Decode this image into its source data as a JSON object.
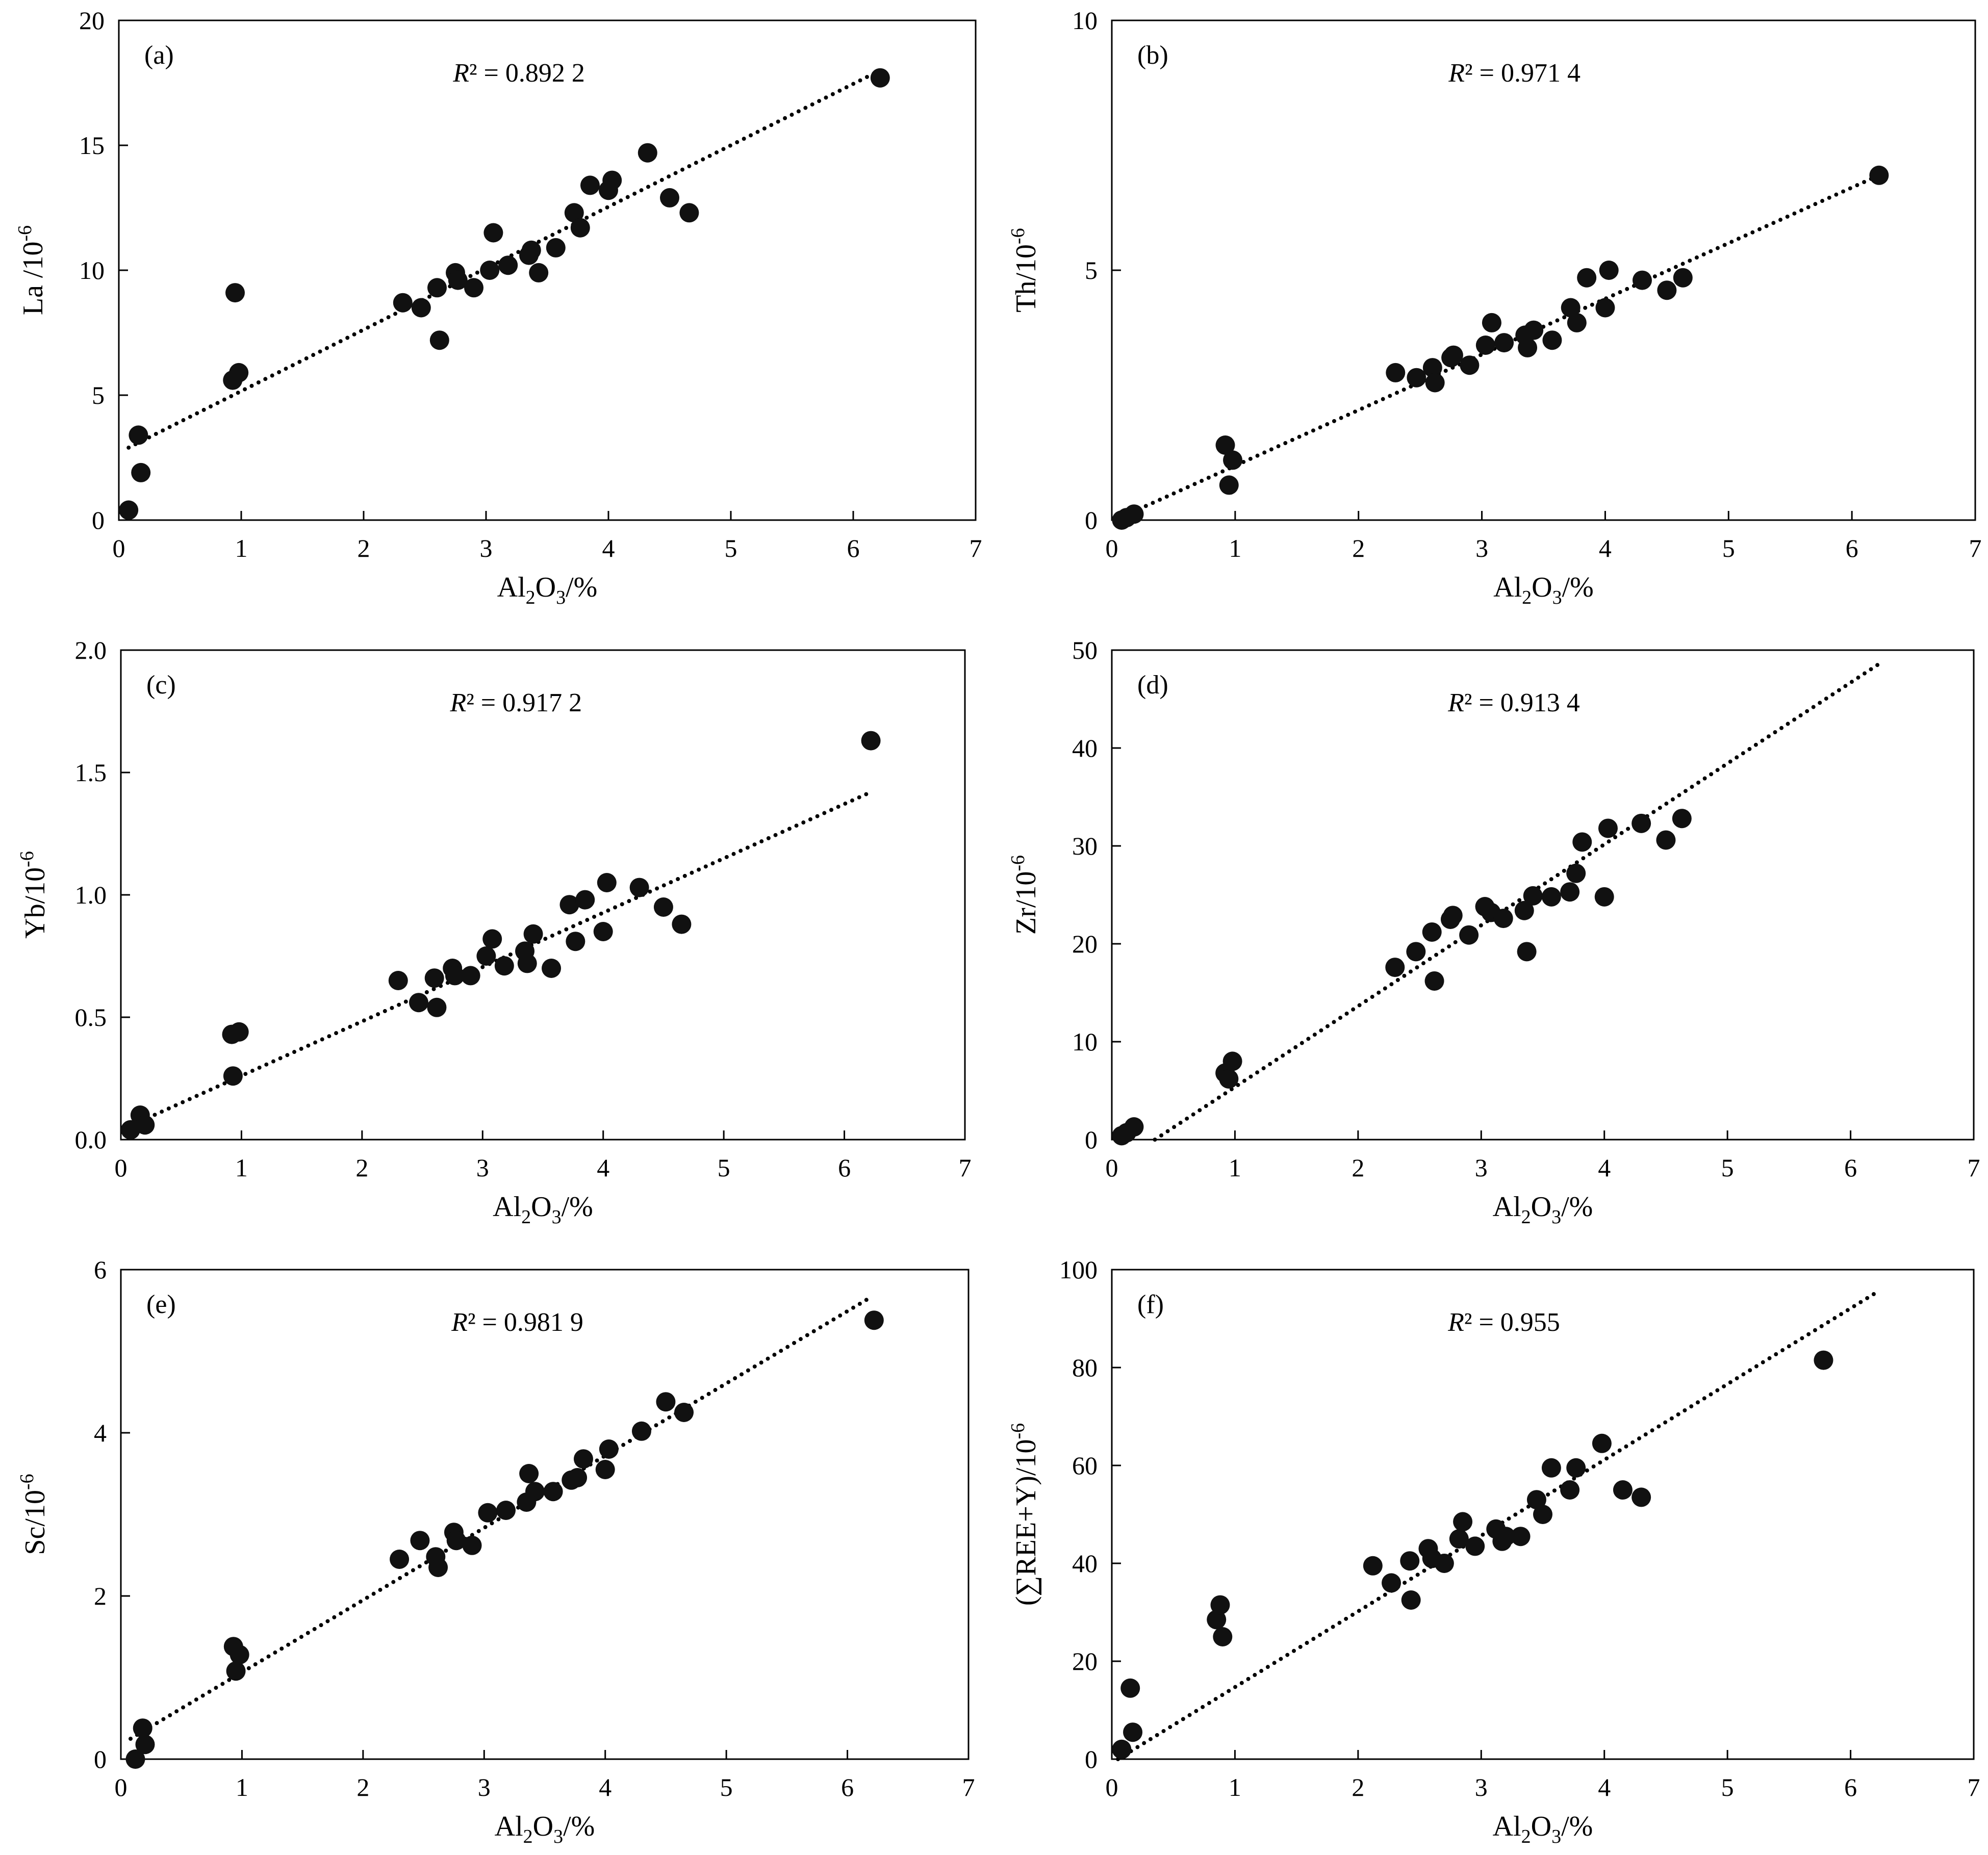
{
  "figure": {
    "x_label_main": "Al",
    "x_label_sub_2": "2",
    "x_label_o": "O",
    "x_label_sub_3": "3",
    "x_label_unit": "/%"
  },
  "chart_data": [
    {
      "type": "scatter",
      "panel": "(a)",
      "ylabel": "La /10",
      "ylabel_sup": "-6",
      "r2_label": "R",
      "r2_value": "² = 0.892 2",
      "xlim": [
        0,
        7
      ],
      "ylim": [
        0,
        20
      ],
      "xticks": [
        0,
        1,
        2,
        3,
        4,
        5,
        6,
        7
      ],
      "yticks": [
        0,
        5,
        10,
        15,
        20
      ],
      "trendline": {
        "x": [
          0.08,
          6.22
        ],
        "y": [
          2.9,
          18.0
        ]
      },
      "points": [
        [
          0.08,
          0.4
        ],
        [
          0.16,
          3.4
        ],
        [
          0.18,
          1.9
        ],
        [
          0.93,
          5.6
        ],
        [
          0.95,
          9.1
        ],
        [
          0.98,
          5.9
        ],
        [
          2.32,
          8.7
        ],
        [
          2.47,
          8.5
        ],
        [
          2.6,
          9.3
        ],
        [
          2.62,
          7.2
        ],
        [
          2.75,
          9.9
        ],
        [
          2.77,
          9.6
        ],
        [
          2.9,
          9.3
        ],
        [
          3.03,
          10.0
        ],
        [
          3.06,
          11.5
        ],
        [
          3.18,
          10.2
        ],
        [
          3.35,
          10.6
        ],
        [
          3.37,
          10.8
        ],
        [
          3.43,
          9.9
        ],
        [
          3.57,
          10.9
        ],
        [
          3.72,
          12.3
        ],
        [
          3.77,
          11.7
        ],
        [
          3.85,
          13.4
        ],
        [
          4.0,
          13.2
        ],
        [
          4.03,
          13.6
        ],
        [
          4.32,
          14.7
        ],
        [
          4.5,
          12.9
        ],
        [
          4.66,
          12.3
        ],
        [
          6.22,
          17.7
        ]
      ]
    },
    {
      "type": "scatter",
      "panel": "(b)",
      "ylabel": "Th/10",
      "ylabel_sup": "-6",
      "r2_label": "R",
      "r2_value": "² = 0.971 4",
      "xlim": [
        0,
        7
      ],
      "ylim": [
        0,
        10
      ],
      "xticks": [
        0,
        1,
        2,
        3,
        4,
        5,
        6,
        7
      ],
      "yticks": [
        0,
        5,
        10
      ],
      "trendline": {
        "x": [
          0.05,
          6.22
        ],
        "y": [
          0.03,
          6.9
        ]
      },
      "points": [
        [
          0.08,
          0.0
        ],
        [
          0.12,
          0.05
        ],
        [
          0.18,
          0.12
        ],
        [
          0.92,
          1.5
        ],
        [
          0.95,
          0.7
        ],
        [
          0.98,
          1.2
        ],
        [
          2.3,
          2.95
        ],
        [
          2.47,
          2.85
        ],
        [
          2.6,
          3.05
        ],
        [
          2.62,
          2.75
        ],
        [
          2.75,
          3.25
        ],
        [
          2.77,
          3.3
        ],
        [
          2.9,
          3.1
        ],
        [
          3.03,
          3.5
        ],
        [
          3.08,
          3.95
        ],
        [
          3.18,
          3.55
        ],
        [
          3.35,
          3.7
        ],
        [
          3.37,
          3.45
        ],
        [
          3.42,
          3.8
        ],
        [
          3.57,
          3.6
        ],
        [
          3.72,
          4.25
        ],
        [
          3.77,
          3.95
        ],
        [
          3.85,
          4.85
        ],
        [
          4.0,
          4.25
        ],
        [
          4.03,
          5.0
        ],
        [
          4.3,
          4.8
        ],
        [
          4.5,
          4.6
        ],
        [
          4.63,
          4.85
        ],
        [
          6.22,
          6.9
        ]
      ]
    },
    {
      "type": "scatter",
      "panel": "(c)",
      "ylabel": "Yb/10",
      "ylabel_sup": "-6",
      "r2_label": "R",
      "r2_value": "² = 0.917 2",
      "xlim": [
        0,
        7
      ],
      "ylim": [
        0.0,
        2.0
      ],
      "xticks": [
        0,
        1,
        2,
        3,
        4,
        5,
        6,
        7
      ],
      "yticks": [
        0.0,
        0.5,
        1.0,
        1.5,
        2.0
      ],
      "ytick_labels": [
        "0.0",
        "0.5",
        "1.0",
        "1.5",
        "2.0"
      ],
      "trendline": {
        "x": [
          0.05,
          6.22
        ],
        "y": [
          0.05,
          1.42
        ]
      },
      "points": [
        [
          0.08,
          0.04
        ],
        [
          0.16,
          0.1
        ],
        [
          0.2,
          0.06
        ],
        [
          0.92,
          0.43
        ],
        [
          0.93,
          0.26
        ],
        [
          0.98,
          0.44
        ],
        [
          2.3,
          0.65
        ],
        [
          2.47,
          0.56
        ],
        [
          2.6,
          0.66
        ],
        [
          2.62,
          0.54
        ],
        [
          2.75,
          0.7
        ],
        [
          2.77,
          0.67
        ],
        [
          2.9,
          0.67
        ],
        [
          3.03,
          0.75
        ],
        [
          3.08,
          0.82
        ],
        [
          3.18,
          0.71
        ],
        [
          3.35,
          0.77
        ],
        [
          3.37,
          0.72
        ],
        [
          3.42,
          0.84
        ],
        [
          3.57,
          0.7
        ],
        [
          3.72,
          0.96
        ],
        [
          3.77,
          0.81
        ],
        [
          3.85,
          0.98
        ],
        [
          4.0,
          0.85
        ],
        [
          4.03,
          1.05
        ],
        [
          4.3,
          1.03
        ],
        [
          4.5,
          0.95
        ],
        [
          4.65,
          0.88
        ],
        [
          6.22,
          1.63
        ]
      ]
    },
    {
      "type": "scatter",
      "panel": "(d)",
      "ylabel": "Zr/10",
      "ylabel_sup": "-6",
      "r2_label": "R",
      "r2_value": "² = 0.913 4",
      "xlim": [
        0,
        7
      ],
      "ylim": [
        0,
        50
      ],
      "xticks": [
        0,
        1,
        2,
        3,
        4,
        5,
        6,
        7
      ],
      "yticks": [
        0,
        10,
        20,
        30,
        40,
        50
      ],
      "trendline": {
        "x": [
          0.35,
          6.22
        ],
        "y": [
          0.0,
          48.5
        ]
      },
      "points": [
        [
          0.08,
          0.4
        ],
        [
          0.12,
          0.7
        ],
        [
          0.18,
          1.3
        ],
        [
          0.92,
          6.8
        ],
        [
          0.95,
          6.2
        ],
        [
          0.98,
          8.0
        ],
        [
          2.3,
          17.6
        ],
        [
          2.47,
          19.2
        ],
        [
          2.6,
          21.2
        ],
        [
          2.62,
          16.2
        ],
        [
          2.75,
          22.5
        ],
        [
          2.77,
          22.9
        ],
        [
          2.9,
          20.9
        ],
        [
          3.03,
          23.8
        ],
        [
          3.08,
          23.2
        ],
        [
          3.18,
          22.6
        ],
        [
          3.35,
          23.4
        ],
        [
          3.37,
          19.2
        ],
        [
          3.42,
          24.9
        ],
        [
          3.57,
          24.8
        ],
        [
          3.72,
          25.3
        ],
        [
          3.77,
          27.2
        ],
        [
          3.82,
          30.4
        ],
        [
          4.0,
          24.8
        ],
        [
          4.03,
          31.8
        ],
        [
          4.3,
          32.3
        ],
        [
          4.5,
          30.6
        ],
        [
          4.63,
          32.8
        ]
      ]
    },
    {
      "type": "scatter",
      "panel": "(e)",
      "ylabel": "Sc/10",
      "ylabel_sup": "-6",
      "r2_label": "R",
      "r2_value": "² = 0.981 9",
      "xlim": [
        0,
        7
      ],
      "ylim": [
        0,
        6
      ],
      "xticks": [
        0,
        1,
        2,
        3,
        4,
        5,
        6,
        7
      ],
      "yticks": [
        0,
        2,
        4,
        6
      ],
      "trendline": {
        "x": [
          0.08,
          6.18
        ],
        "y": [
          0.25,
          5.65
        ]
      },
      "points": [
        [
          0.12,
          0.0
        ],
        [
          0.18,
          0.38
        ],
        [
          0.2,
          0.18
        ],
        [
          0.93,
          1.38
        ],
        [
          0.95,
          1.08
        ],
        [
          0.98,
          1.28
        ],
        [
          2.3,
          2.45
        ],
        [
          2.47,
          2.68
        ],
        [
          2.6,
          2.48
        ],
        [
          2.62,
          2.35
        ],
        [
          2.75,
          2.78
        ],
        [
          2.77,
          2.68
        ],
        [
          2.9,
          2.62
        ],
        [
          3.03,
          3.02
        ],
        [
          3.18,
          3.05
        ],
        [
          3.35,
          3.15
        ],
        [
          3.37,
          3.5
        ],
        [
          3.42,
          3.28
        ],
        [
          3.57,
          3.28
        ],
        [
          3.72,
          3.42
        ],
        [
          3.77,
          3.45
        ],
        [
          3.82,
          3.68
        ],
        [
          4.0,
          3.55
        ],
        [
          4.03,
          3.8
        ],
        [
          4.3,
          4.02
        ],
        [
          4.5,
          4.38
        ],
        [
          4.65,
          4.25
        ],
        [
          6.22,
          5.38
        ]
      ]
    },
    {
      "type": "scatter",
      "panel": "(f)",
      "ylabel": "(∑REE+Y)/10",
      "ylabel_sup": "-6",
      "r2_label": "R",
      "r2_value": "² = 0.955",
      "xlim": [
        0,
        7
      ],
      "ylim": [
        0,
        100
      ],
      "xticks": [
        0,
        1,
        2,
        3,
        4,
        5,
        6,
        7
      ],
      "yticks": [
        0,
        20,
        40,
        60,
        80,
        100
      ],
      "trendline": {
        "x": [
          0.05,
          6.22
        ],
        "y": [
          0.0,
          95.5
        ]
      },
      "points": [
        [
          0.08,
          2.0
        ],
        [
          0.15,
          14.5
        ],
        [
          0.17,
          5.5
        ],
        [
          0.85,
          28.5
        ],
        [
          0.88,
          31.5
        ],
        [
          0.9,
          25.0
        ],
        [
          2.12,
          39.5
        ],
        [
          2.27,
          36.0
        ],
        [
          2.42,
          40.5
        ],
        [
          2.43,
          32.5
        ],
        [
          2.57,
          43.0
        ],
        [
          2.6,
          41.0
        ],
        [
          2.7,
          40.0
        ],
        [
          2.82,
          45.0
        ],
        [
          2.85,
          48.5
        ],
        [
          2.95,
          43.5
        ],
        [
          3.12,
          47.0
        ],
        [
          3.17,
          44.5
        ],
        [
          3.2,
          45.5
        ],
        [
          3.32,
          45.5
        ],
        [
          3.45,
          53.0
        ],
        [
          3.5,
          50.0
        ],
        [
          3.57,
          59.5
        ],
        [
          3.72,
          55.0
        ],
        [
          3.77,
          59.5
        ],
        [
          3.98,
          64.5
        ],
        [
          4.15,
          55.0
        ],
        [
          4.3,
          53.5
        ],
        [
          5.78,
          81.5
        ]
      ]
    }
  ]
}
